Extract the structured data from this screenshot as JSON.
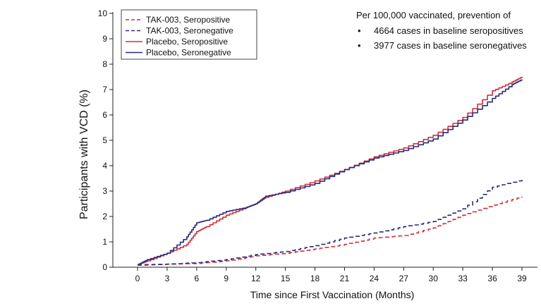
{
  "chart_data": {
    "type": "line",
    "title": "",
    "xlabel": "Time since First Vaccination (Months)",
    "ylabel": "Participants with VCD (%)",
    "xlim": [
      -1,
      40
    ],
    "ylim": [
      0,
      10
    ],
    "xticks": [
      0,
      3,
      6,
      9,
      12,
      15,
      18,
      21,
      24,
      27,
      30,
      33,
      36,
      39
    ],
    "yticks": [
      0,
      1,
      2,
      3,
      4,
      5,
      6,
      7,
      8,
      9,
      10
    ],
    "grid": false,
    "legend_position": "top-left",
    "series": [
      {
        "name": "TAK-003, Seropositive",
        "color": "#d0303a",
        "dash": true,
        "points": [
          [
            0,
            0.1
          ],
          [
            3,
            0.12
          ],
          [
            6,
            0.15
          ],
          [
            9,
            0.25
          ],
          [
            12,
            0.45
          ],
          [
            15,
            0.55
          ],
          [
            18,
            0.72
          ],
          [
            21,
            0.9
          ],
          [
            24,
            1.15
          ],
          [
            27,
            1.25
          ],
          [
            30,
            1.55
          ],
          [
            33,
            2.05
          ],
          [
            36,
            2.45
          ],
          [
            39,
            2.78
          ]
        ]
      },
      {
        "name": "TAK-003, Seronegative",
        "color": "#2a2a7a",
        "dash": true,
        "points": [
          [
            0,
            0.08
          ],
          [
            3,
            0.12
          ],
          [
            6,
            0.18
          ],
          [
            9,
            0.3
          ],
          [
            12,
            0.5
          ],
          [
            15,
            0.62
          ],
          [
            18,
            0.85
          ],
          [
            21,
            1.15
          ],
          [
            24,
            1.35
          ],
          [
            27,
            1.6
          ],
          [
            30,
            1.8
          ],
          [
            33,
            2.3
          ],
          [
            36,
            3.15
          ],
          [
            39,
            3.45
          ]
        ]
      },
      {
        "name": "Placebo, Seropositive",
        "color": "#d0303a",
        "dash": false,
        "points": [
          [
            0,
            0.1
          ],
          [
            1,
            0.25
          ],
          [
            3,
            0.55
          ],
          [
            5,
            0.9
          ],
          [
            6,
            1.4
          ],
          [
            7,
            1.6
          ],
          [
            9,
            2.05
          ],
          [
            11,
            2.35
          ],
          [
            12,
            2.5
          ],
          [
            13,
            2.75
          ],
          [
            15,
            3.0
          ],
          [
            18,
            3.4
          ],
          [
            21,
            3.85
          ],
          [
            24,
            4.35
          ],
          [
            27,
            4.7
          ],
          [
            30,
            5.2
          ],
          [
            33,
            5.9
          ],
          [
            36,
            6.95
          ],
          [
            38,
            7.3
          ],
          [
            39,
            7.5
          ]
        ]
      },
      {
        "name": "Placebo, Seronegative",
        "color": "#2a2a7a",
        "dash": false,
        "points": [
          [
            0,
            0.1
          ],
          [
            1,
            0.3
          ],
          [
            3,
            0.55
          ],
          [
            5,
            1.2
          ],
          [
            6,
            1.75
          ],
          [
            7,
            1.85
          ],
          [
            9,
            2.2
          ],
          [
            11,
            2.35
          ],
          [
            12,
            2.5
          ],
          [
            13,
            2.8
          ],
          [
            15,
            2.95
          ],
          [
            18,
            3.3
          ],
          [
            21,
            3.85
          ],
          [
            24,
            4.3
          ],
          [
            27,
            4.6
          ],
          [
            30,
            5.05
          ],
          [
            33,
            5.8
          ],
          [
            36,
            6.65
          ],
          [
            38,
            7.2
          ],
          [
            39,
            7.4
          ]
        ]
      }
    ],
    "annotation": {
      "heading": "Per 100,000 vaccinated, prevention of",
      "bullets": [
        "4664 cases in baseline seropositives",
        "3977 cases in baseline seronegatives"
      ],
      "bullet_symbol": "•"
    }
  }
}
